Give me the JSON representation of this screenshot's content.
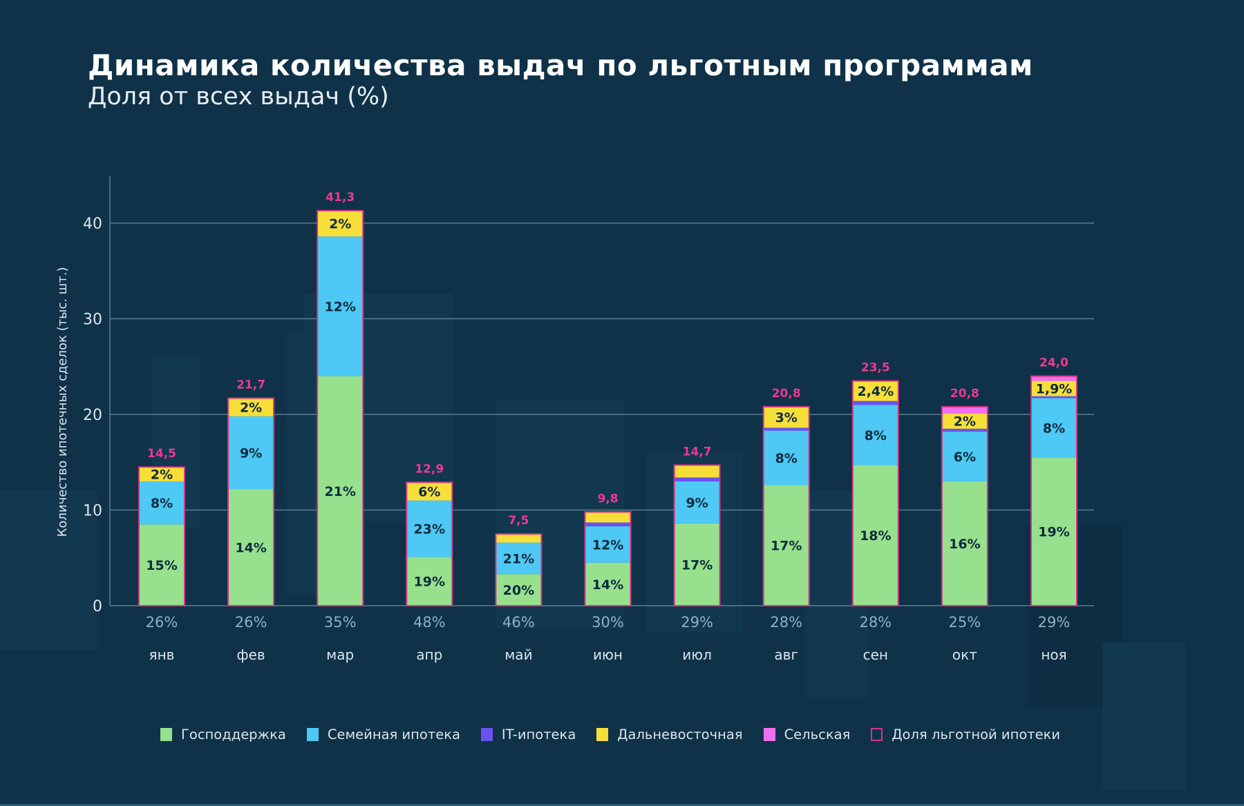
{
  "header": {
    "title": "Динамика количества выдач по льготным программам",
    "subtitle": "Доля от всех выдач (%)"
  },
  "colors": {
    "background": "#0f3249",
    "gospod": "#97e18e",
    "family": "#4ec8f4",
    "it": "#6a52f0",
    "fareast": "#f7df3a",
    "rural": "#f06ef0",
    "total_outline": "#d63584",
    "total_label": "#f0388f",
    "grid": "#5a7d93",
    "share_label": "#8fb1c4",
    "month_label": "#dbe6ec",
    "segment_label": "#0e2a3d"
  },
  "chart_data": {
    "type": "bar",
    "stacked": true,
    "title": "Динамика количества выдач по льготным программам",
    "subtitle": "Доля от всех выдач (%)",
    "xlabel": "",
    "ylabel": "Количество ипотечных сделок (тыс. шт.)",
    "ylim": [
      0,
      45
    ],
    "yticks": [
      0,
      10,
      20,
      30,
      40
    ],
    "ytick_labels": [
      "0",
      "10",
      "20",
      "30",
      "40"
    ],
    "grid": true,
    "legend_position": "bottom",
    "categories": [
      "янв",
      "фев",
      "мар",
      "апр",
      "май",
      "июн",
      "июл",
      "авг",
      "сен",
      "окт",
      "ноя"
    ],
    "series": [
      {
        "name": "Господдержка",
        "color_key": "gospod",
        "values": [
          8.5,
          12.2,
          24.0,
          5.1,
          3.3,
          4.5,
          8.6,
          12.6,
          14.7,
          13.0,
          15.5
        ],
        "labels": [
          "15%",
          "14%",
          "21%",
          "19%",
          "20%",
          "14%",
          "17%",
          "17%",
          "18%",
          "16%",
          "19%"
        ]
      },
      {
        "name": "Семейная ипотека",
        "color_key": "family",
        "values": [
          4.5,
          7.6,
          14.6,
          5.9,
          3.3,
          3.8,
          4.4,
          5.7,
          6.3,
          5.2,
          6.2
        ],
        "labels": [
          "8%",
          "9%",
          "12%",
          "23%",
          "21%",
          "12%",
          "9%",
          "8%",
          "8%",
          "6%",
          "8%"
        ]
      },
      {
        "name": "IT-ипотека",
        "color_key": "it",
        "values": [
          0,
          0,
          0,
          0,
          0,
          0.4,
          0.4,
          0.3,
          0.4,
          0.3,
          0.2
        ],
        "labels": [
          "",
          "",
          "",
          "",
          "",
          "",
          "",
          "",
          "",
          "",
          ""
        ]
      },
      {
        "name": "Дальневосточная",
        "color_key": "fareast",
        "values": [
          1.5,
          1.9,
          2.7,
          1.9,
          0.9,
          1.1,
          1.3,
          2.2,
          2.1,
          1.6,
          1.6
        ],
        "labels": [
          "2%",
          "2%",
          "2%",
          "6%",
          "",
          "",
          "",
          "3%",
          "2,4%",
          "2%",
          "1,9%"
        ]
      },
      {
        "name": "Сельская",
        "color_key": "rural",
        "values": [
          0,
          0,
          0,
          0,
          0,
          0,
          0,
          0,
          0,
          0.7,
          0.5
        ],
        "labels": [
          "",
          "",
          "",
          "",
          "",
          "",
          "",
          "",
          "",
          "",
          ""
        ]
      }
    ],
    "totals": [
      14.5,
      21.7,
      41.3,
      12.9,
      7.5,
      9.8,
      14.7,
      20.8,
      23.5,
      20.8,
      24.0
    ],
    "total_labels": [
      "14,5",
      "21,7",
      "41,3",
      "12,9",
      "7,5",
      "9,8",
      "14,7",
      "20,8",
      "23,5",
      "20,8",
      "24,0"
    ],
    "share_of_preferential": {
      "name": "Доля льготной ипотеки",
      "values": [
        26,
        26,
        35,
        48,
        46,
        30,
        29,
        28,
        28,
        25,
        29
      ],
      "labels": [
        "26%",
        "26%",
        "35%",
        "48%",
        "46%",
        "30%",
        "29%",
        "28%",
        "28%",
        "25%",
        "29%"
      ]
    }
  },
  "legend": {
    "items": [
      {
        "label": "Господдержка",
        "color_key": "gospod",
        "style": "filled"
      },
      {
        "label": "Семейная ипотека",
        "color_key": "family",
        "style": "filled"
      },
      {
        "label": "IT-ипотека",
        "color_key": "it",
        "style": "filled"
      },
      {
        "label": "Дальневосточная",
        "color_key": "fareast",
        "style": "filled"
      },
      {
        "label": "Сельская",
        "color_key": "rural",
        "style": "filled"
      },
      {
        "label": "Доля льготной ипотеки",
        "color_key": "total_outline",
        "style": "outline"
      }
    ]
  }
}
